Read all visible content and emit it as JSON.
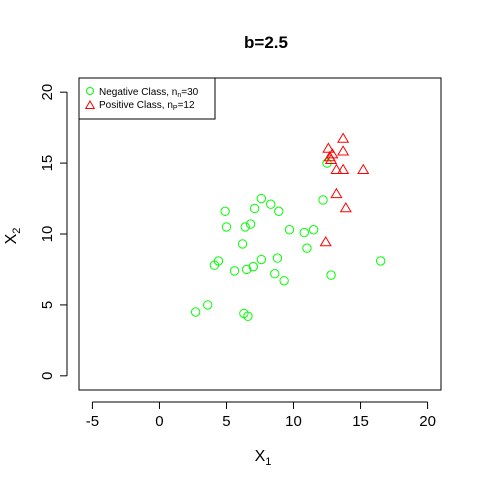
{
  "chart_data": {
    "type": "scatter",
    "title": "b=2.5",
    "xlabel": {
      "main": "X",
      "sub": "1"
    },
    "ylabel": {
      "main": "X",
      "sub": "2"
    },
    "xlim": [
      -6,
      21
    ],
    "ylim": [
      -1,
      21
    ],
    "xticks": [
      -5,
      0,
      5,
      10,
      15,
      20
    ],
    "yticks": [
      0,
      5,
      10,
      15,
      20
    ],
    "grid": false,
    "legend_position": "top-left",
    "series": [
      {
        "name": {
          "prefix": "Negative Class, n",
          "sub": "n",
          "suffix": "=30"
        },
        "marker": "circle",
        "color": "#00ff00",
        "points": [
          [
            12.5,
            15.0
          ],
          [
            7.6,
            12.5
          ],
          [
            8.3,
            12.1
          ],
          [
            7.1,
            11.8
          ],
          [
            4.9,
            11.6
          ],
          [
            8.9,
            11.6
          ],
          [
            12.2,
            12.4
          ],
          [
            6.8,
            10.7
          ],
          [
            5.0,
            10.5
          ],
          [
            6.4,
            10.5
          ],
          [
            9.7,
            10.3
          ],
          [
            10.8,
            10.1
          ],
          [
            11.5,
            10.3
          ],
          [
            11.0,
            9.0
          ],
          [
            6.2,
            9.3
          ],
          [
            8.8,
            8.3
          ],
          [
            7.6,
            8.2
          ],
          [
            4.4,
            8.1
          ],
          [
            16.5,
            8.1
          ],
          [
            4.1,
            7.8
          ],
          [
            7.0,
            7.7
          ],
          [
            6.5,
            7.5
          ],
          [
            5.6,
            7.4
          ],
          [
            8.6,
            7.2
          ],
          [
            12.8,
            7.1
          ],
          [
            9.3,
            6.7
          ],
          [
            3.6,
            5.0
          ],
          [
            2.7,
            4.5
          ],
          [
            6.3,
            4.4
          ],
          [
            6.6,
            4.2
          ]
        ]
      },
      {
        "name": {
          "prefix": "Positive Class, n",
          "sub": "P",
          "suffix": "=12"
        },
        "marker": "triangle",
        "color": "#ff0000",
        "points": [
          [
            13.7,
            16.7
          ],
          [
            12.6,
            16.0
          ],
          [
            13.7,
            15.8
          ],
          [
            12.9,
            15.6
          ],
          [
            12.8,
            15.2
          ],
          [
            13.2,
            14.5
          ],
          [
            13.7,
            14.5
          ],
          [
            15.2,
            14.5
          ],
          [
            13.2,
            12.8
          ],
          [
            13.9,
            11.8
          ],
          [
            12.4,
            9.4
          ],
          [
            12.7,
            15.4
          ]
        ]
      }
    ]
  }
}
